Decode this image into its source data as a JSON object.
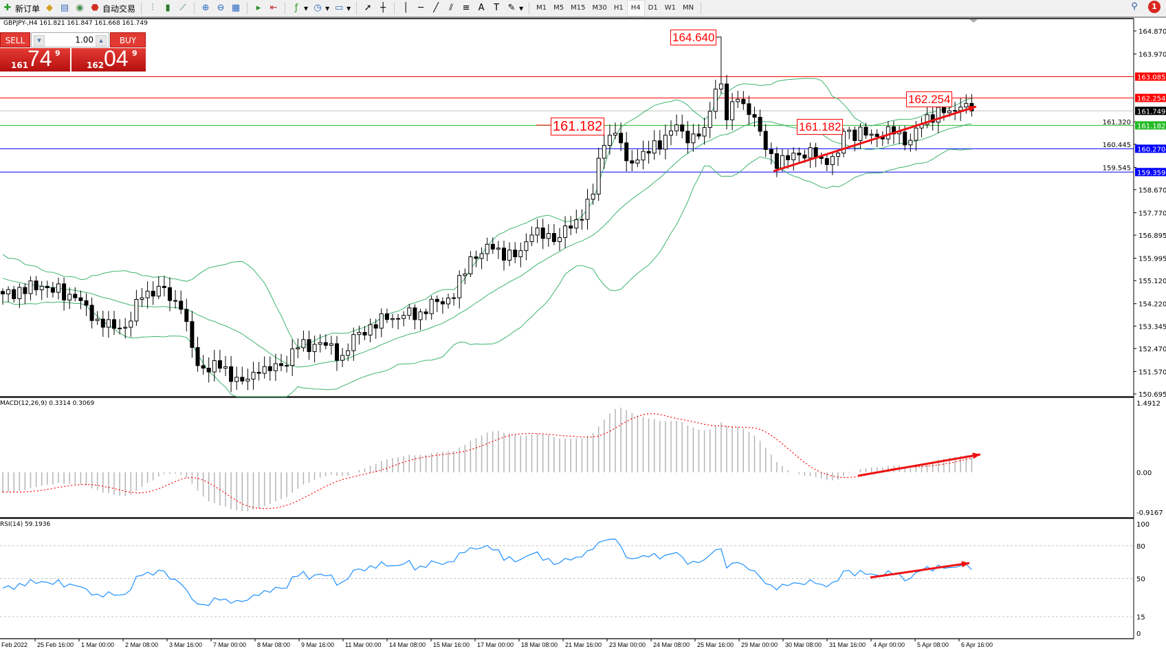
{
  "toolbar": {
    "new_order_label": "新订单",
    "auto_trading_label": "自动交易",
    "icons": [
      "new-order-icon",
      "navigator-icon",
      "terminal-icon",
      "signal-icon",
      "auto-trading-icon",
      "bar-chart-icon",
      "candlestick-icon",
      "line-chart-icon",
      "zoom-in-icon",
      "zoom-out-icon",
      "tile-icon",
      "autoscroll-icon",
      "chart-shift-icon",
      "indicators-icon",
      "periods-icon",
      "templates-icon",
      "cursor-icon",
      "crosshair-icon",
      "vertical-line-icon",
      "horizontal-line-icon",
      "trendline-icon",
      "equidistant-channel-icon",
      "fibonacci-icon",
      "text-icon",
      "text-label-icon",
      "arrows-icon"
    ],
    "timeframes": [
      "M1",
      "M5",
      "M15",
      "M30",
      "H1",
      "H4",
      "D1",
      "W1",
      "MN"
    ],
    "active_timeframe": "H4",
    "notification_count": "1"
  },
  "symbol_info": "GBPJPY-,H4  161.821 161.847 161.668 161.749",
  "trade_panel": {
    "sell_label": "SELL",
    "buy_label": "BUY",
    "lot": "1.00",
    "sell_price_prefix": "161",
    "sell_price_big": "74",
    "sell_price_sup": "9",
    "buy_price_prefix": "162",
    "buy_price_big": "04",
    "buy_price_sup": "9"
  },
  "colors": {
    "up_candle": "#ffffff",
    "down_candle": "#000000",
    "bollinger": "#3cb46e",
    "resistance": "#ff0000",
    "support_green": "#22bb22",
    "support_blue": "#0000ff",
    "current_price": "#c0c0c0",
    "macd_hist": "#b4b4b4",
    "macd_signal": "#ff0000",
    "rsi": "#1e90ff",
    "arrow": "#ee1111"
  },
  "chart_data": {
    "type": "candlestick",
    "symbol": "GBPJPY-",
    "timeframe": "H4",
    "ohlc_last": {
      "open": 161.821,
      "high": 161.847,
      "low": 161.668,
      "close": 161.749
    },
    "price_axis_ticks": [
      "164.870",
      "163.970",
      "161.320",
      "160.445",
      "159.545",
      "158.670",
      "157.770",
      "156.895",
      "155.995",
      "155.120",
      "154.220",
      "153.345",
      "152.470",
      "151.570",
      "150.695"
    ],
    "price_range": [
      150.695,
      164.87
    ],
    "time_axis_labels": [
      "Feb 2022",
      "25 Feb 16:00",
      "1 Mar 00:00",
      "2 Mar 08:00",
      "3 Mar 16:00",
      "7 Mar 00:00",
      "8 Mar 08:00",
      "9 Mar 16:00",
      "11 Mar 00:00",
      "14 Mar 08:00",
      "15 Mar 16:00",
      "17 Mar 00:00",
      "18 Mar 08:00",
      "21 Mar 16:00",
      "23 Mar 00:00",
      "24 Mar 08:00",
      "25 Mar 16:00",
      "29 Mar 00:00",
      "30 Mar 08:00",
      "31 Mar 16:00",
      "4 Apr 00:00",
      "5 Apr 08:00",
      "6 Apr 16:00"
    ],
    "close_path": [
      [
        0,
        154.6
      ],
      [
        7,
        154.9
      ],
      [
        13,
        154.45
      ],
      [
        18,
        153.3
      ],
      [
        22,
        153.3
      ],
      [
        25,
        154.45
      ],
      [
        28,
        154.9
      ],
      [
        32,
        154.0
      ],
      [
        35,
        151.8
      ],
      [
        39,
        151.7
      ],
      [
        43,
        151.2
      ],
      [
        46,
        151.5
      ],
      [
        50,
        151.8
      ],
      [
        53,
        152.5
      ],
      [
        57,
        152.7
      ],
      [
        61,
        152.2
      ],
      [
        64,
        153.1
      ],
      [
        69,
        153.6
      ],
      [
        75,
        153.9
      ],
      [
        78,
        154.3
      ],
      [
        81,
        154.45
      ],
      [
        84,
        156.05
      ],
      [
        88,
        156.35
      ],
      [
        92,
        156.05
      ],
      [
        95,
        156.9
      ],
      [
        100,
        156.8
      ],
      [
        103,
        157.5
      ],
      [
        106,
        158.5
      ],
      [
        107,
        159.9
      ],
      [
        109,
        160.8
      ],
      [
        111,
        160.5
      ],
      [
        112,
        159.8
      ],
      [
        116,
        160.1
      ],
      [
        119,
        160.8
      ],
      [
        121,
        161.2
      ],
      [
        123,
        160.5
      ],
      [
        126,
        161.1
      ],
      [
        128,
        162.6
      ],
      [
        129,
        162.8
      ],
      [
        130,
        161.4
      ],
      [
        132,
        162.2
      ],
      [
        135,
        161.5
      ],
      [
        136,
        160.95
      ],
      [
        139,
        159.5
      ],
      [
        142,
        160.1
      ],
      [
        146,
        159.95
      ],
      [
        148,
        159.65
      ],
      [
        150,
        160.1
      ],
      [
        151,
        160.95
      ],
      [
        155,
        160.8
      ],
      [
        160,
        160.85
      ],
      [
        163,
        160.6
      ],
      [
        166,
        161.6
      ],
      [
        170,
        161.75
      ],
      [
        172,
        161.9
      ],
      [
        174,
        161.749
      ]
    ],
    "horizontal_levels": [
      {
        "price": "163.085",
        "color": "#ff0000"
      },
      {
        "price": "162.254",
        "color": "#ff0000"
      },
      {
        "price": "161.749",
        "color": "#c0c0c0",
        "label_bg": "#000000"
      },
      {
        "price": "161.182",
        "color": "#22bb22"
      },
      {
        "price": "160.270",
        "color": "#0000ff"
      },
      {
        "price": "159.359",
        "color": "#0000ff"
      }
    ],
    "annotations": {
      "peak": "164.640",
      "fib_left": "161.182",
      "fib_right": "161.182",
      "high_right": "162.254"
    },
    "bollinger": {
      "period": 20,
      "deviation": 2
    },
    "macd": {
      "label": "MACD(12,26,9) 0.3314 0.3069",
      "max": "1.4912",
      "zero": "0.00",
      "min": "-0.9167"
    },
    "rsi": {
      "label": "RSI(14) 59.1936",
      "levels": [
        "100",
        "80",
        "50",
        "15",
        "0"
      ]
    }
  }
}
